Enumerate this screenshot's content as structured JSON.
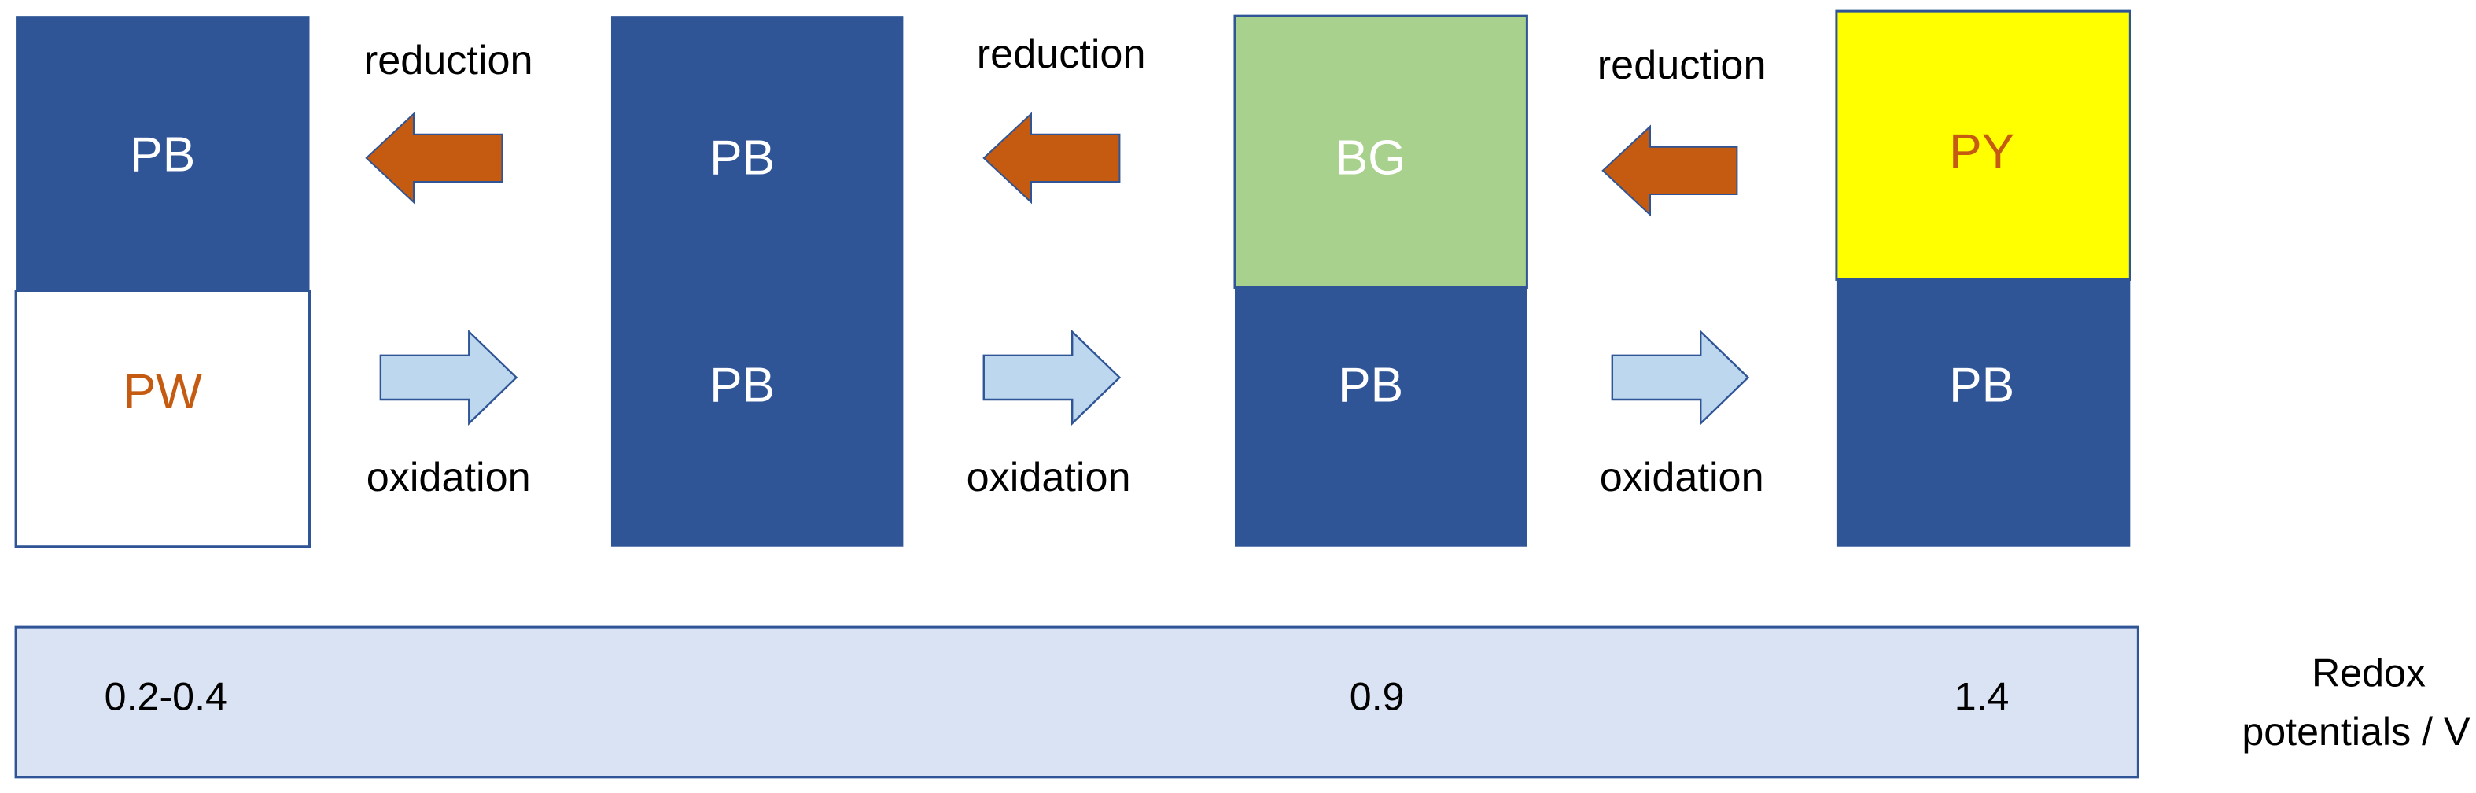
{
  "stages": [
    {
      "top": "PB",
      "bottom": "PW"
    },
    {
      "top": "PB",
      "bottom": "PB"
    },
    {
      "top": "BG",
      "bottom": "PB"
    },
    {
      "top": "PY",
      "bottom": "PB"
    }
  ],
  "transitions": [
    {
      "reverse": "reduction",
      "forward": "oxidation"
    },
    {
      "reverse": "reduction",
      "forward": "oxidation"
    },
    {
      "reverse": "reduction",
      "forward": "oxidation"
    }
  ],
  "potentials": {
    "values": [
      "0.2-0.4",
      "0.9",
      "1.4"
    ],
    "label": [
      "Redox",
      "potentials / V"
    ]
  }
}
